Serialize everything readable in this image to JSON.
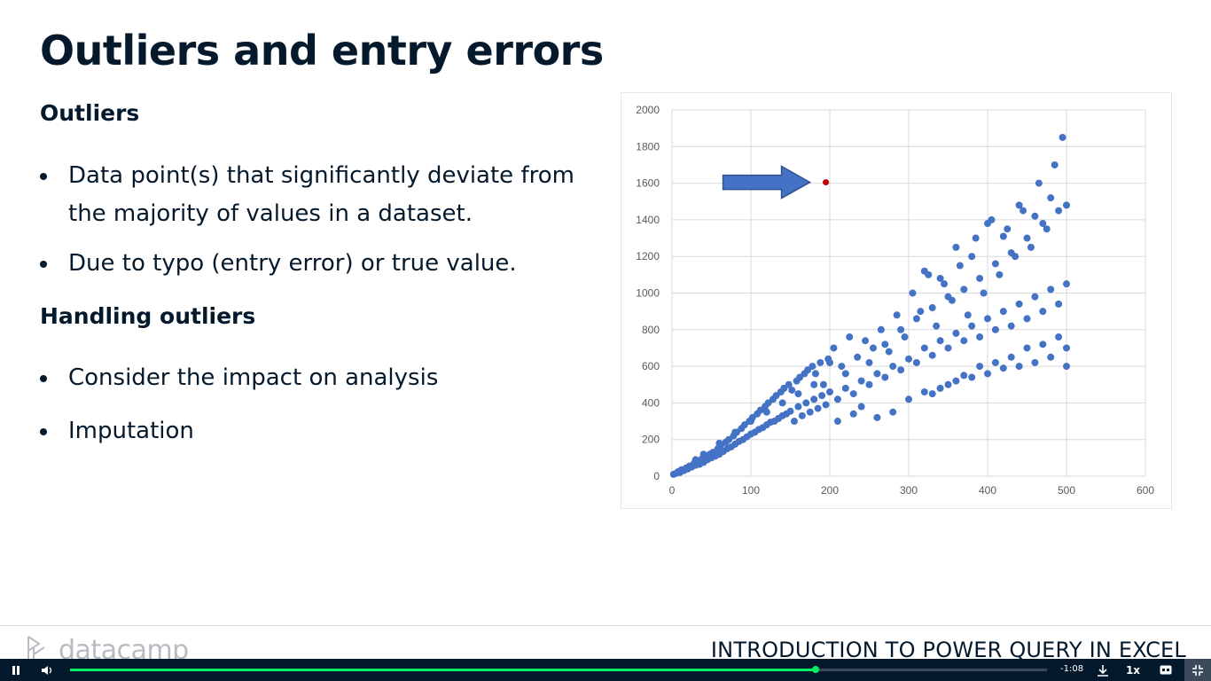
{
  "slide": {
    "title": "Outliers and entry errors",
    "section1": {
      "heading": "Outliers",
      "bullets": [
        "Data point(s) that significantly deviate from the majority of values in a dataset.",
        "Due to typo (entry error) or true value."
      ]
    },
    "section2": {
      "heading": "Handling outliers",
      "bullets": [
        "Consider the impact on analysis",
        "Imputation"
      ]
    }
  },
  "chart_data": {
    "type": "scatter",
    "title": "",
    "xlabel": "",
    "ylabel": "",
    "xlim": [
      0,
      600
    ],
    "ylim": [
      0,
      2000
    ],
    "x_ticks": [
      0,
      100,
      200,
      300,
      400,
      500,
      600
    ],
    "y_ticks": [
      0,
      200,
      400,
      600,
      800,
      1000,
      1200,
      1400,
      1600,
      1800,
      2000
    ],
    "grid": true,
    "point_color": "#4472c4",
    "outlier_color": "#c00000",
    "arrow_color": "#4472c4",
    "outlier": {
      "x": 195,
      "y": 1605
    },
    "series": [
      {
        "values": [
          [
            2,
            10
          ],
          [
            5,
            15
          ],
          [
            8,
            25
          ],
          [
            10,
            20
          ],
          [
            12,
            35
          ],
          [
            15,
            30
          ],
          [
            18,
            45
          ],
          [
            20,
            40
          ],
          [
            22,
            55
          ],
          [
            25,
            50
          ],
          [
            28,
            70
          ],
          [
            30,
            60
          ],
          [
            32,
            80
          ],
          [
            35,
            65
          ],
          [
            38,
            95
          ],
          [
            40,
            75
          ],
          [
            42,
            110
          ],
          [
            45,
            90
          ],
          [
            48,
            120
          ],
          [
            50,
            100
          ],
          [
            52,
            130
          ],
          [
            55,
            110
          ],
          [
            58,
            150
          ],
          [
            60,
            120
          ],
          [
            62,
            170
          ],
          [
            65,
            135
          ],
          [
            68,
            185
          ],
          [
            70,
            150
          ],
          [
            72,
            200
          ],
          [
            75,
            160
          ],
          [
            78,
            220
          ],
          [
            80,
            175
          ],
          [
            82,
            240
          ],
          [
            85,
            190
          ],
          [
            88,
            260
          ],
          [
            90,
            200
          ],
          [
            92,
            280
          ],
          [
            95,
            215
          ],
          [
            98,
            300
          ],
          [
            100,
            230
          ],
          [
            102,
            320
          ],
          [
            105,
            240
          ],
          [
            108,
            340
          ],
          [
            110,
            255
          ],
          [
            112,
            360
          ],
          [
            115,
            265
          ],
          [
            118,
            380
          ],
          [
            120,
            280
          ],
          [
            122,
            400
          ],
          [
            125,
            295
          ],
          [
            128,
            420
          ],
          [
            130,
            300
          ],
          [
            132,
            440
          ],
          [
            135,
            315
          ],
          [
            138,
            460
          ],
          [
            140,
            330
          ],
          [
            142,
            480
          ],
          [
            145,
            340
          ],
          [
            148,
            500
          ],
          [
            150,
            355
          ],
          [
            152,
            470
          ],
          [
            155,
            300
          ],
          [
            158,
            520
          ],
          [
            160,
            380
          ],
          [
            162,
            540
          ],
          [
            165,
            330
          ],
          [
            168,
            560
          ],
          [
            170,
            400
          ],
          [
            172,
            580
          ],
          [
            175,
            350
          ],
          [
            178,
            600
          ],
          [
            180,
            420
          ],
          [
            182,
            560
          ],
          [
            185,
            370
          ],
          [
            188,
            620
          ],
          [
            190,
            440
          ],
          [
            192,
            500
          ],
          [
            195,
            390
          ],
          [
            198,
            640
          ],
          [
            200,
            460
          ],
          [
            205,
            700
          ],
          [
            210,
            420
          ],
          [
            215,
            600
          ],
          [
            220,
            480
          ],
          [
            225,
            760
          ],
          [
            230,
            450
          ],
          [
            235,
            650
          ],
          [
            240,
            520
          ],
          [
            245,
            740
          ],
          [
            250,
            500
          ],
          [
            255,
            700
          ],
          [
            260,
            560
          ],
          [
            265,
            800
          ],
          [
            270,
            540
          ],
          [
            275,
            680
          ],
          [
            280,
            600
          ],
          [
            285,
            880
          ],
          [
            290,
            580
          ],
          [
            295,
            760
          ],
          [
            300,
            640
          ],
          [
            305,
            1000
          ],
          [
            310,
            620
          ],
          [
            315,
            900
          ],
          [
            320,
            700
          ],
          [
            325,
            1100
          ],
          [
            330,
            660
          ],
          [
            335,
            820
          ],
          [
            340,
            740
          ],
          [
            345,
            1050
          ],
          [
            350,
            700
          ],
          [
            355,
            960
          ],
          [
            360,
            780
          ],
          [
            365,
            1150
          ],
          [
            370,
            740
          ],
          [
            375,
            880
          ],
          [
            380,
            820
          ],
          [
            385,
            1300
          ],
          [
            390,
            760
          ],
          [
            395,
            1000
          ],
          [
            400,
            860
          ],
          [
            405,
            1400
          ],
          [
            410,
            800
          ],
          [
            415,
            1100
          ],
          [
            420,
            900
          ],
          [
            425,
            1350
          ],
          [
            430,
            820
          ],
          [
            435,
            1200
          ],
          [
            440,
            940
          ],
          [
            445,
            1450
          ],
          [
            450,
            860
          ],
          [
            455,
            1250
          ],
          [
            460,
            980
          ],
          [
            465,
            1600
          ],
          [
            470,
            900
          ],
          [
            475,
            1350
          ],
          [
            480,
            1020
          ],
          [
            485,
            1700
          ],
          [
            490,
            940
          ],
          [
            495,
            1850
          ],
          [
            500,
            1050
          ],
          [
            330,
            450
          ],
          [
            350,
            500
          ],
          [
            370,
            550
          ],
          [
            390,
            600
          ],
          [
            410,
            620
          ],
          [
            430,
            650
          ],
          [
            450,
            700
          ],
          [
            470,
            720
          ],
          [
            490,
            760
          ],
          [
            500,
            600
          ],
          [
            320,
            1120
          ],
          [
            340,
            1080
          ],
          [
            360,
            1250
          ],
          [
            380,
            1200
          ],
          [
            400,
            1380
          ],
          [
            420,
            1310
          ],
          [
            440,
            1480
          ],
          [
            460,
            1420
          ],
          [
            480,
            1520
          ],
          [
            500,
            1480
          ],
          [
            260,
            320
          ],
          [
            280,
            350
          ],
          [
            300,
            420
          ],
          [
            320,
            460
          ],
          [
            340,
            480
          ],
          [
            360,
            520
          ],
          [
            380,
            540
          ],
          [
            400,
            560
          ],
          [
            420,
            590
          ],
          [
            440,
            600
          ],
          [
            460,
            620
          ],
          [
            480,
            650
          ],
          [
            500,
            700
          ],
          [
            250,
            620
          ],
          [
            270,
            720
          ],
          [
            290,
            800
          ],
          [
            310,
            860
          ],
          [
            330,
            920
          ],
          [
            350,
            980
          ],
          [
            370,
            1020
          ],
          [
            390,
            1080
          ],
          [
            410,
            1160
          ],
          [
            430,
            1220
          ],
          [
            450,
            1300
          ],
          [
            470,
            1380
          ],
          [
            490,
            1450
          ],
          [
            210,
            300
          ],
          [
            230,
            340
          ],
          [
            240,
            380
          ],
          [
            220,
            560
          ],
          [
            200,
            620
          ],
          [
            180,
            500
          ],
          [
            160,
            450
          ],
          [
            140,
            400
          ],
          [
            120,
            350
          ],
          [
            100,
            300
          ],
          [
            80,
            240
          ],
          [
            60,
            180
          ],
          [
            40,
            120
          ],
          [
            30,
            90
          ]
        ]
      }
    ]
  },
  "footer": {
    "brand": "datacamp",
    "course_title": "INTRODUCTION TO POWER QUERY IN EXCEL"
  },
  "player": {
    "time_remaining": "-1:08",
    "speed": "1x",
    "progress": 0.763,
    "progress_color": "#03ef62"
  }
}
